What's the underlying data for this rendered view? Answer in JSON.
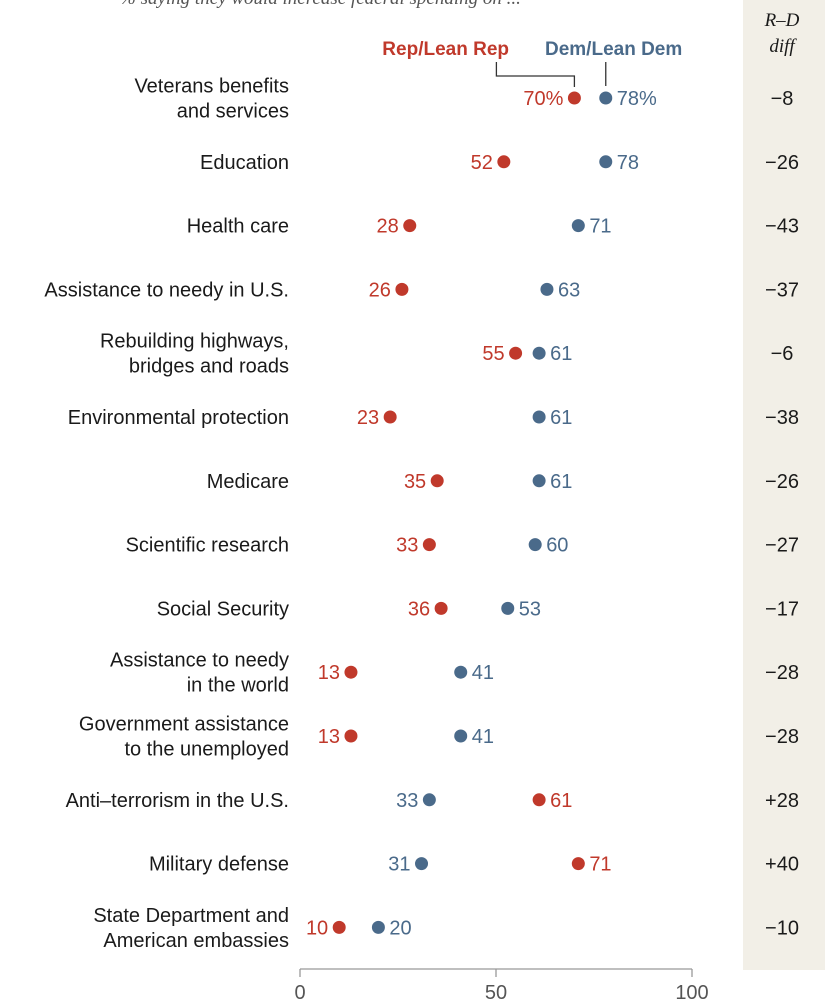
{
  "chart_data": {
    "type": "scatter",
    "subtitle": "% saying they would increase federal spending on ...",
    "legend": {
      "rep": "Rep/Lean Rep",
      "dem": "Dem/Lean Dem"
    },
    "diff_header": [
      "R–D",
      "diff"
    ],
    "xlim": [
      0,
      100
    ],
    "xticks": [
      "0",
      "50",
      "100"
    ],
    "colors": {
      "rep": "#c0392b",
      "dem": "#4a6a8a",
      "diff_band": "#f2efe7"
    },
    "rows": [
      {
        "label": [
          "Veterans benefits",
          "and services"
        ],
        "rep": 70,
        "dem": 78,
        "rep_label": "70%",
        "dem_label": "78%",
        "diff": "−8"
      },
      {
        "label": [
          "Education"
        ],
        "rep": 52,
        "dem": 78,
        "rep_label": "52",
        "dem_label": "78",
        "diff": "−26"
      },
      {
        "label": [
          "Health care"
        ],
        "rep": 28,
        "dem": 71,
        "rep_label": "28",
        "dem_label": "71",
        "diff": "−43"
      },
      {
        "label": [
          "Assistance to needy in U.S."
        ],
        "rep": 26,
        "dem": 63,
        "rep_label": "26",
        "dem_label": "63",
        "diff": "−37"
      },
      {
        "label": [
          "Rebuilding highways,",
          "bridges and roads"
        ],
        "rep": 55,
        "dem": 61,
        "rep_label": "55",
        "dem_label": "61",
        "diff": "−6"
      },
      {
        "label": [
          "Environmental protection"
        ],
        "rep": 23,
        "dem": 61,
        "rep_label": "23",
        "dem_label": "61",
        "diff": "−38"
      },
      {
        "label": [
          "Medicare"
        ],
        "rep": 35,
        "dem": 61,
        "rep_label": "35",
        "dem_label": "61",
        "diff": "−26"
      },
      {
        "label": [
          "Scientific research"
        ],
        "rep": 33,
        "dem": 60,
        "rep_label": "33",
        "dem_label": "60",
        "diff": "−27"
      },
      {
        "label": [
          "Social Security"
        ],
        "rep": 36,
        "dem": 53,
        "rep_label": "36",
        "dem_label": "53",
        "diff": "−17"
      },
      {
        "label": [
          "Assistance to needy",
          "in the world"
        ],
        "rep": 13,
        "dem": 41,
        "rep_label": "13",
        "dem_label": "41",
        "diff": "−28"
      },
      {
        "label": [
          "Government assistance",
          "to the unemployed"
        ],
        "rep": 13,
        "dem": 41,
        "rep_label": "13",
        "dem_label": "41",
        "diff": "−28"
      },
      {
        "label": [
          "Anti–terrorism in the U.S."
        ],
        "rep": 61,
        "dem": 33,
        "rep_label": "61",
        "dem_label": "33",
        "diff": "+28"
      },
      {
        "label": [
          "Military defense"
        ],
        "rep": 71,
        "dem": 31,
        "rep_label": "71",
        "dem_label": "31",
        "diff": "+40"
      },
      {
        "label": [
          "State Department and",
          "American embassies"
        ],
        "rep": 10,
        "dem": 20,
        "rep_label": "10",
        "dem_label": "20",
        "diff": "−10"
      }
    ]
  }
}
